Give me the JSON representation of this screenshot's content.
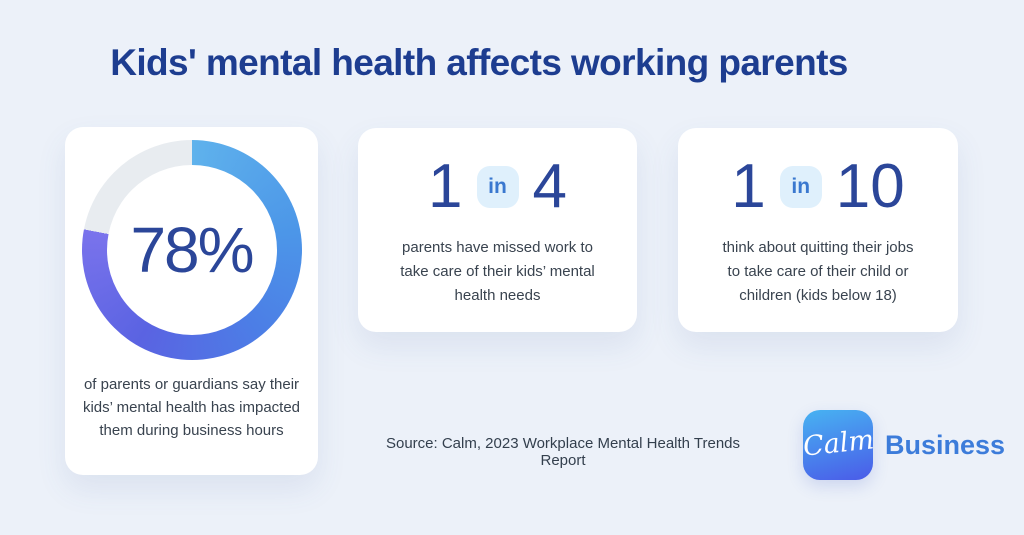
{
  "page": {
    "background_color": "#ECF1F9",
    "title": "Kids' mental health affects working parents",
    "title_color": "#1D3D90"
  },
  "chart_data": {
    "type": "pie",
    "donut": true,
    "title": "Kids' mental health affects working parents",
    "labels": [
      "parents or guardians who say their kids' mental health has impacted them during business hours",
      "remainder"
    ],
    "values": [
      78,
      22
    ],
    "center_label": "78%",
    "segment_colors": [
      "blue-to-purple gradient #5FB2EC → #7A73EC",
      "#E8ECF0"
    ],
    "legend_position": "none",
    "caption": "of parents or guardians say their kids’ mental health has impacted them during business hours",
    "companion_stats": [
      {
        "ratio": "1 in 4",
        "description": "parents have missed work to take care of their kids’ mental health needs"
      },
      {
        "ratio": "1 in 10",
        "description": "think about quitting their jobs to take care of their child or children (kids below 18)"
      }
    ]
  },
  "cards": [
    {
      "value": "78%",
      "lines": [
        "of parents or guardians say their",
        "kids’ mental health has impacted",
        "them during business hours"
      ]
    },
    {
      "numerator": "1",
      "connector": "in",
      "denominator": "4",
      "lines": [
        "parents have missed work to",
        "take care of their kids’ mental",
        "health needs"
      ]
    },
    {
      "numerator": "1",
      "connector": "in",
      "denominator": "10",
      "lines": [
        "think about quitting their jobs",
        "to take care of their child or",
        "children (kids below 18)"
      ]
    }
  ],
  "footer": {
    "source": "Source: Calm, 2023 Workplace Mental Health Trends Report",
    "brand": {
      "wordmark": "Calm",
      "label": "Business",
      "label_color": "#3C7CDA",
      "tile_gradient_start": "#47B3F2",
      "tile_gradient_end": "#4A5BE8"
    }
  },
  "colors": {
    "stat_number": "#2B4699",
    "badge_background": "#DFF0FC",
    "badge_text": "#3A78CF",
    "body_text": "#39434F",
    "donut_track": "#E8ECF0",
    "card_background": "#FFFFFF"
  }
}
